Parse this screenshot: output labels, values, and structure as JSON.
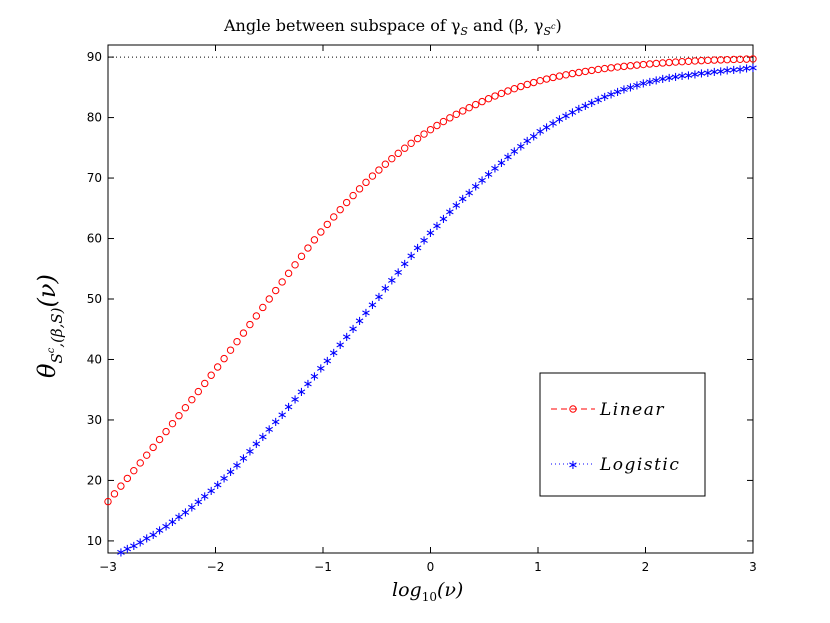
{
  "chart_data": {
    "type": "line",
    "title": "Angle between subspace of γ",
    "title_sub1": "S",
    "title_and": " and (β, γ",
    "title_sub2": "S",
    "title_sup2": "c",
    "title_close": ")",
    "xlabel": "log",
    "xlabel_sub": "10",
    "xlabel_arg": "(ν)",
    "ylabel": "θ",
    "ylabel_sub": "S",
    "ylabel_sup": "c",
    "ylabel_sub_rest": ",(β,S)",
    "ylabel_arg": "(ν)",
    "xlim": [
      -3,
      3
    ],
    "ylim": [
      8,
      92
    ],
    "x_ticks": [
      -3,
      -2,
      -1,
      0,
      1,
      2,
      3
    ],
    "x_tick_labels": [
      "−3",
      "−2",
      "−1",
      "0",
      "1",
      "2",
      "3"
    ],
    "y_ticks": [
      10,
      20,
      30,
      40,
      50,
      60,
      70,
      80,
      90
    ],
    "y_tick_labels": [
      "10",
      "20",
      "30",
      "40",
      "50",
      "60",
      "70",
      "80",
      "90"
    ],
    "reference_line": {
      "y": 90,
      "style": "dotted",
      "color": "#000000"
    },
    "legend_position": "lower-right",
    "series": [
      {
        "name": "Linear",
        "color": "#ff0000",
        "marker": "circle",
        "x": [
          -3,
          -2.5,
          -2,
          -1.5,
          -1,
          -0.5,
          0,
          0.5,
          1,
          1.5,
          2,
          2.5,
          3
        ],
        "y": [
          16.5,
          27.2,
          38.3,
          50.0,
          61.5,
          71.0,
          78.0,
          82.8,
          86.0,
          87.8,
          88.8,
          89.4,
          89.7
        ]
      },
      {
        "name": "Logistic",
        "color": "#0000ff",
        "marker": "star",
        "x": [
          -3,
          -2.5,
          -2,
          -1.5,
          -1,
          -0.5,
          0,
          0.5,
          1,
          1.5,
          2,
          2.5,
          3
        ],
        "y": [
          7.0,
          12.0,
          19.0,
          28.5,
          39.0,
          50.0,
          61.0,
          70.0,
          77.5,
          82.5,
          85.8,
          87.3,
          88.3
        ]
      }
    ]
  }
}
